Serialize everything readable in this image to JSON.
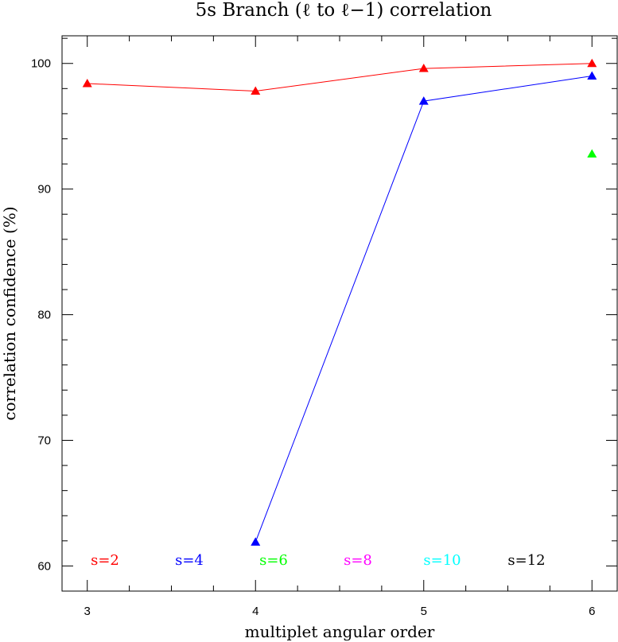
{
  "chart_data": {
    "type": "line",
    "title": "5s Branch (ℓ to ℓ−1) correlation",
    "xlabel": "multiplet angular order",
    "ylabel": "correlation confidence (%)",
    "xlim": [
      2.85,
      6.15
    ],
    "ylim": [
      58,
      102.2
    ],
    "x_ticks": [
      3,
      4,
      5,
      6
    ],
    "y_ticks": [
      60,
      70,
      80,
      90,
      100
    ],
    "x_minor_step": 0.25,
    "y_minor_step": 2,
    "grid": false,
    "series": [
      {
        "name": "s=2",
        "color": "#ff0000",
        "x": [
          3,
          4,
          5,
          6
        ],
        "y": [
          98.4,
          97.8,
          99.6,
          100.0
        ]
      },
      {
        "name": "s=4",
        "color": "#0000ff",
        "x": [
          4,
          5,
          6
        ],
        "y": [
          61.9,
          97.0,
          99.0
        ]
      },
      {
        "name": "s=6",
        "color": "#00ff00",
        "x": [
          6
        ],
        "y": [
          92.8
        ]
      },
      {
        "name": "s=8",
        "color": "#ff00ff",
        "x": [],
        "y": []
      },
      {
        "name": "s=10",
        "color": "#00ffff",
        "x": [],
        "y": []
      },
      {
        "name": "s=12",
        "color": "#000000",
        "x": [],
        "y": []
      }
    ],
    "legend_placement": "bottom, inside plot, single row"
  }
}
